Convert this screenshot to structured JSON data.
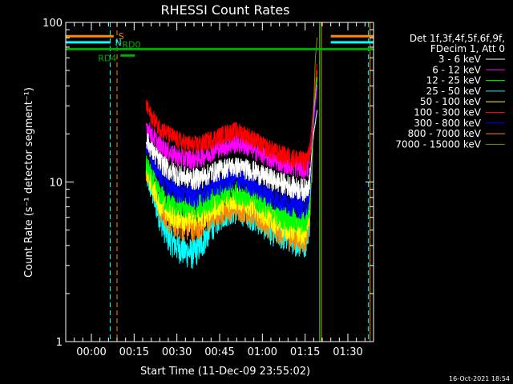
{
  "chart_data": {
    "type": "line",
    "title": "RHESSI Count Rates",
    "xlabel": "Start Time (11-Dec-09 23:55:02)",
    "ylabel": "Count Rate (s⁻¹ detector segment⁻¹)",
    "ylog": true,
    "ylim": [
      1,
      100
    ],
    "xlim_minutes": [
      -3,
      33
    ],
    "yticks": [
      {
        "value": 1,
        "label": "1"
      },
      {
        "value": 10,
        "label": "10"
      },
      {
        "value": 100,
        "label": "100"
      }
    ],
    "xticks": [
      {
        "minute": 0,
        "label": "00:00"
      },
      {
        "minute": 5,
        "label": "00:15"
      },
      {
        "minute": 10,
        "label": "00:30"
      },
      {
        "minute": 15,
        "label": "00:45"
      },
      {
        "minute": 20,
        "label": "01:00"
      },
      {
        "minute": 25,
        "label": "01:15"
      },
      {
        "minute": 30,
        "label": "01:30"
      }
    ],
    "legend_header": [
      "Det 1f,3f,4f,5f,6f,9f,",
      "FDecim 1, Att 0"
    ],
    "legend_position": "right",
    "series": [
      {
        "name": "3 - 6 keV",
        "color": "#ffffff",
        "points": [
          [
            6.4,
            19
          ],
          [
            7,
            16
          ],
          [
            8,
            13.5
          ],
          [
            9,
            12
          ],
          [
            10,
            11.2
          ],
          [
            11,
            10.8
          ],
          [
            12,
            10.5
          ],
          [
            13,
            10.8
          ],
          [
            14,
            11.5
          ],
          [
            15,
            12
          ],
          [
            16,
            12.5
          ],
          [
            17,
            12.5
          ],
          [
            18,
            12.2
          ],
          [
            19,
            11.8
          ],
          [
            20,
            11
          ],
          [
            21,
            10.5
          ],
          [
            22,
            10
          ],
          [
            23,
            9.6
          ],
          [
            24,
            9.2
          ],
          [
            25,
            9
          ],
          [
            25.5,
            10
          ],
          [
            26,
            20
          ],
          [
            26.4,
            28
          ]
        ]
      },
      {
        "name": "6 - 12 keV",
        "color": "#ff00ff",
        "points": [
          [
            6.4,
            23
          ],
          [
            7,
            20
          ],
          [
            8,
            17
          ],
          [
            9,
            15.5
          ],
          [
            10,
            14.5
          ],
          [
            11,
            14
          ],
          [
            12,
            14
          ],
          [
            13,
            14.5
          ],
          [
            14,
            15.5
          ],
          [
            15,
            16.5
          ],
          [
            16,
            17
          ],
          [
            17,
            17.5
          ],
          [
            18,
            17
          ],
          [
            19,
            16
          ],
          [
            20,
            15
          ],
          [
            21,
            14
          ],
          [
            22,
            13.5
          ],
          [
            23,
            13
          ],
          [
            24,
            12.5
          ],
          [
            25,
            12
          ],
          [
            25.5,
            13
          ],
          [
            26,
            25
          ],
          [
            26.4,
            40
          ]
        ]
      },
      {
        "name": "12 - 25 keV",
        "color": "#00ff00",
        "points": [
          [
            6.4,
            13
          ],
          [
            7,
            11
          ],
          [
            8,
            8.5
          ],
          [
            9,
            7.5
          ],
          [
            10,
            7.2
          ],
          [
            11,
            7
          ],
          [
            12,
            7
          ],
          [
            13,
            7.2
          ],
          [
            14,
            7.8
          ],
          [
            15,
            8.2
          ],
          [
            16,
            8.6
          ],
          [
            17,
            8.7
          ],
          [
            18,
            8.4
          ],
          [
            19,
            8
          ],
          [
            20,
            7.4
          ],
          [
            21,
            6.8
          ],
          [
            22,
            6.3
          ],
          [
            23,
            6
          ],
          [
            24,
            5.8
          ],
          [
            25,
            5.6
          ],
          [
            25.5,
            7
          ],
          [
            26,
            30
          ],
          [
            26.4,
            45
          ]
        ]
      },
      {
        "name": "25 - 50 keV",
        "color": "#00ffff",
        "points": [
          [
            6.4,
            11
          ],
          [
            7,
            9
          ],
          [
            8,
            6
          ],
          [
            9,
            4.5
          ],
          [
            10,
            4
          ],
          [
            11,
            3.7
          ],
          [
            12,
            3.6
          ],
          [
            13,
            4.2
          ],
          [
            14,
            5.2
          ],
          [
            15,
            6
          ],
          [
            16,
            6.5
          ],
          [
            17,
            6.6
          ],
          [
            18,
            6.4
          ],
          [
            19,
            6
          ],
          [
            20,
            5.5
          ],
          [
            21,
            5
          ],
          [
            22,
            4.7
          ],
          [
            23,
            4.5
          ],
          [
            24,
            4.3
          ],
          [
            25,
            4.2
          ],
          [
            25.5,
            5.5
          ],
          [
            26,
            25
          ],
          [
            26.4,
            40
          ]
        ]
      },
      {
        "name": "50 - 100 keV",
        "color": "#ffff00",
        "points": [
          [
            6.4,
            12
          ],
          [
            7,
            10
          ],
          [
            8,
            7.5
          ],
          [
            9,
            6.5
          ],
          [
            10,
            6.2
          ],
          [
            11,
            6
          ],
          [
            12,
            6
          ],
          [
            13,
            6.3
          ],
          [
            14,
            6.8
          ],
          [
            15,
            7.4
          ],
          [
            16,
            7.8
          ],
          [
            17,
            7.9
          ],
          [
            18,
            7.6
          ],
          [
            19,
            7.2
          ],
          [
            20,
            6.6
          ],
          [
            21,
            6
          ],
          [
            22,
            5.6
          ],
          [
            23,
            5.3
          ],
          [
            24,
            5.1
          ],
          [
            25,
            5
          ],
          [
            25.5,
            6.5
          ],
          [
            26,
            28
          ],
          [
            26.4,
            45
          ]
        ]
      },
      {
        "name": "100 - 300 keV",
        "color": "#ff0000",
        "points": [
          [
            6.4,
            30
          ],
          [
            7,
            26
          ],
          [
            8,
            22
          ],
          [
            9,
            20
          ],
          [
            10,
            18.5
          ],
          [
            11,
            17.5
          ],
          [
            12,
            17
          ],
          [
            13,
            17.5
          ],
          [
            14,
            18.5
          ],
          [
            15,
            19.5
          ],
          [
            16,
            20.5
          ],
          [
            17,
            21
          ],
          [
            18,
            20
          ],
          [
            19,
            18.5
          ],
          [
            20,
            17
          ],
          [
            21,
            16
          ],
          [
            22,
            15
          ],
          [
            23,
            14.5
          ],
          [
            24,
            14
          ],
          [
            25,
            13.5
          ],
          [
            25.5,
            15
          ],
          [
            26,
            30
          ],
          [
            26.4,
            55
          ]
        ]
      },
      {
        "name": "300 - 800 keV",
        "color": "#0000ff",
        "points": [
          [
            6.4,
            17
          ],
          [
            7,
            14
          ],
          [
            8,
            11
          ],
          [
            9,
            9.5
          ],
          [
            10,
            8.8
          ],
          [
            11,
            8.4
          ],
          [
            12,
            8.2
          ],
          [
            13,
            8.5
          ],
          [
            14,
            9.2
          ],
          [
            15,
            9.8
          ],
          [
            16,
            10.3
          ],
          [
            17,
            10.4
          ],
          [
            18,
            10
          ],
          [
            19,
            9.5
          ],
          [
            20,
            8.8
          ],
          [
            21,
            8.2
          ],
          [
            22,
            7.8
          ],
          [
            23,
            7.5
          ],
          [
            24,
            7.2
          ],
          [
            25,
            7
          ],
          [
            25.5,
            8
          ],
          [
            26,
            22
          ],
          [
            26.4,
            38
          ]
        ]
      },
      {
        "name": "800 - 7000 keV",
        "color": "#ff8800",
        "points": [
          [
            6.4,
            12
          ],
          [
            7,
            10
          ],
          [
            8,
            7
          ],
          [
            9,
            5.8
          ],
          [
            10,
            5.4
          ],
          [
            11,
            5.2
          ],
          [
            12,
            5.2
          ],
          [
            13,
            5.5
          ],
          [
            14,
            6
          ],
          [
            15,
            6.5
          ],
          [
            16,
            6.9
          ],
          [
            17,
            7
          ],
          [
            18,
            6.7
          ],
          [
            19,
            6.3
          ],
          [
            20,
            5.8
          ],
          [
            21,
            5.3
          ],
          [
            22,
            5
          ],
          [
            23,
            4.7
          ],
          [
            24,
            4.5
          ],
          [
            25,
            4.4
          ],
          [
            25.5,
            6
          ],
          [
            26,
            30
          ],
          [
            26.4,
            50
          ]
        ]
      },
      {
        "name": "7000 - 15000 keV",
        "color": "#888800",
        "points": [
          [
            25.8,
            10
          ],
          [
            26,
            30
          ],
          [
            26.2,
            60
          ],
          [
            26.4,
            80
          ]
        ]
      }
    ],
    "attenuator_segments": [
      {
        "label": "S",
        "color": "#ff8800",
        "y": 82,
        "ranges": [
          [
            -3,
            2.6
          ],
          [
            28,
            33
          ]
        ]
      },
      {
        "label": "N",
        "color": "#00ffff",
        "y": 75,
        "ranges": [
          [
            -3,
            2.2
          ],
          [
            28,
            33
          ]
        ]
      },
      {
        "label": "RD0",
        "color": "#00aa00",
        "y": 68,
        "ranges": [
          [
            -3,
            33
          ]
        ]
      },
      {
        "label": "RD4",
        "color": "#00aa00",
        "y": 62,
        "ranges": [
          [
            3.4,
            5.1
          ]
        ]
      }
    ],
    "vertical_markers": [
      {
        "minute": -3,
        "color": "#00ffff",
        "dashed": false
      },
      {
        "minute": 2.2,
        "color": "#00ffff",
        "dashed": true
      },
      {
        "minute": 3.0,
        "color": "#ff8800",
        "dashed": true
      },
      {
        "minute": 26.7,
        "color": "#00ff00",
        "dashed": false
      },
      {
        "minute": 26.9,
        "color": "#ff8800",
        "dashed": false
      },
      {
        "minute": 32.4,
        "color": "#00ffff",
        "dashed": true
      },
      {
        "minute": 32.6,
        "color": "#ff8800",
        "dashed": false
      }
    ],
    "grid": false
  },
  "footer": {
    "date_stamp": "16-Oct-2021 18:54"
  }
}
